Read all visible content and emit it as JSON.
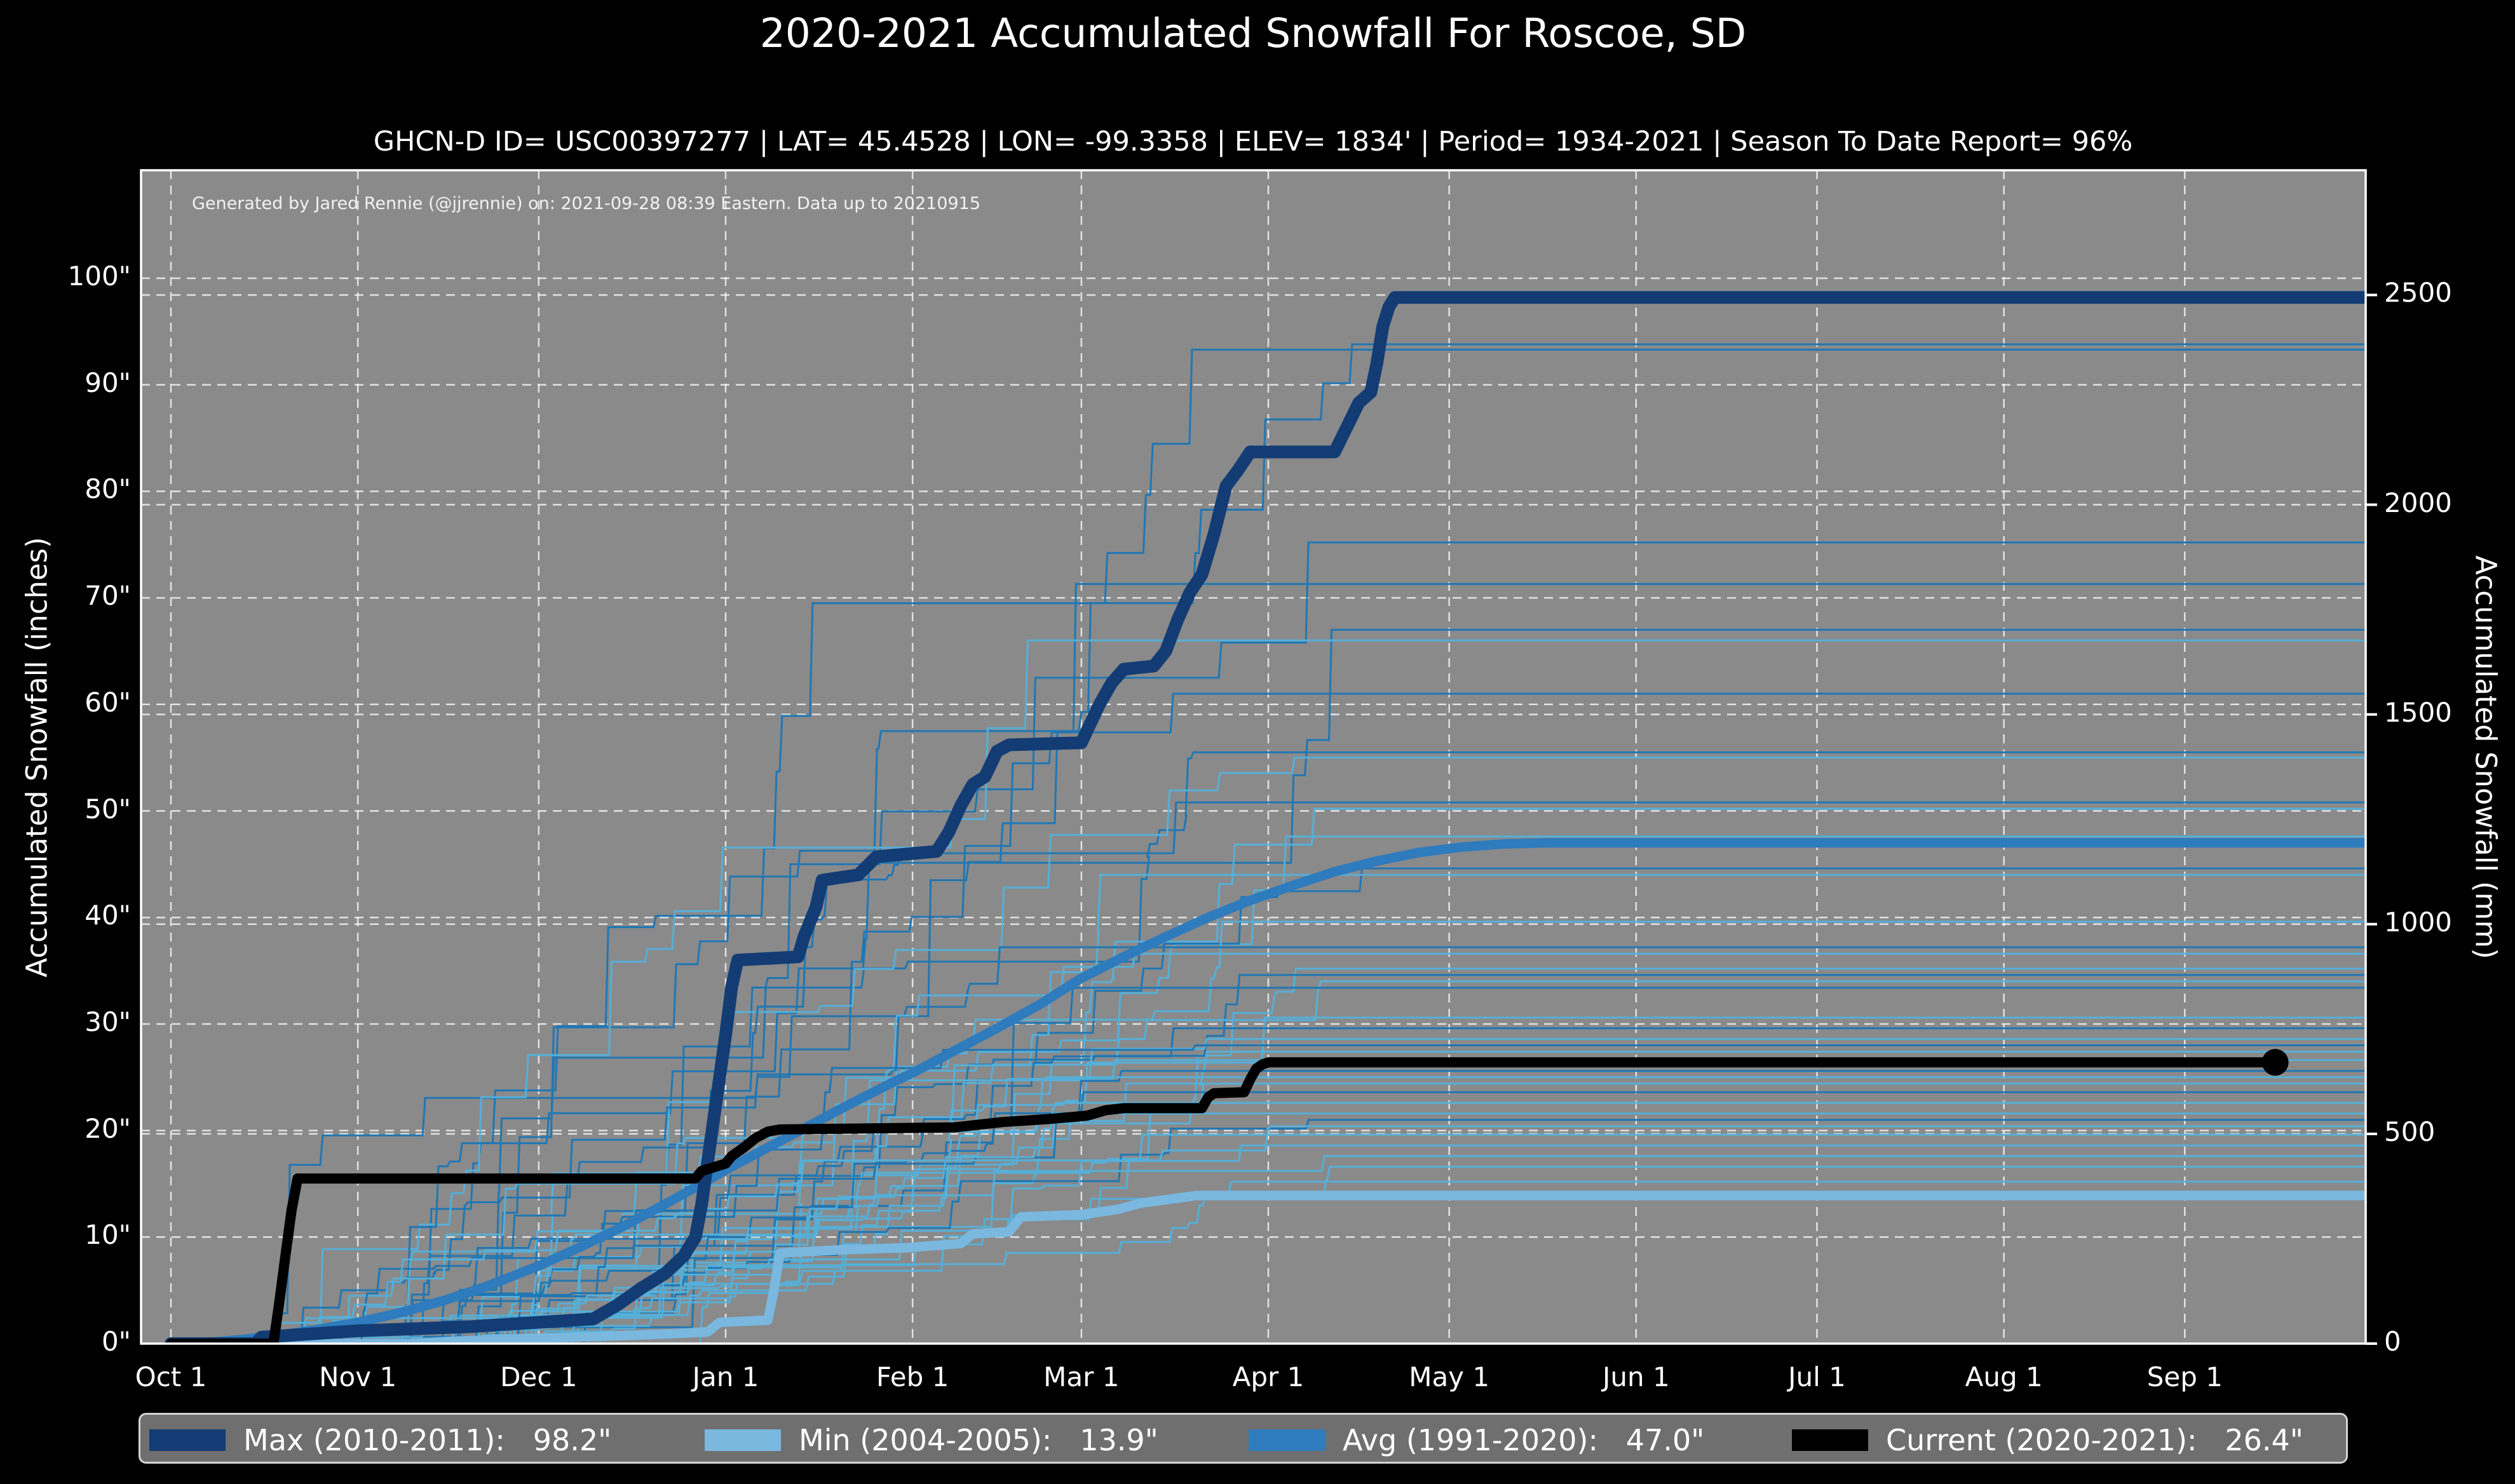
{
  "figure": {
    "title": "2020-2021 Accumulated Snowfall For Roscoe, SD",
    "subtitle": "GHCN-D ID= USC00397277 | LAT= 45.4528 | LON= -99.3358 | ELEV= 1834' | Period= 1934-2021 | Season To Date Report= 96%",
    "annotation": "Generated by Jared Rennie (@jjrennie) on: 2021-09-28 08:39 Eastern. Data up to 20210915",
    "colors": {
      "figure_bg": "#000000",
      "plot_bg": "#8a8a8a",
      "grid": "rgba(255,255,255,0.75)",
      "spine": "#ffffff",
      "max_line": "#133c74",
      "min_line": "#7ab8e0",
      "avg_line": "#2e7bbd",
      "current_line": "#000000",
      "spaghetti_dark": "#1f77b4",
      "spaghetti_light": "#55b0d9",
      "legend_bg": "#6f6f6f",
      "legend_border": "#d4d4d4",
      "text": "#ffffff"
    }
  },
  "chart_data": {
    "type": "line",
    "title": "2020-2021 Accumulated Snowfall For Roscoe, SD",
    "subtitle": "GHCN-D ID= USC00397277 | LAT= 45.4528 | LON= -99.3358 | ELEV= 1834' | Period= 1934-2021 | Season To Date Report= 96%",
    "annotation": "Generated by Jared Rennie (@jjrennie) on: 2021-09-28 08:39 Eastern. Data up to 20210915",
    "grid": "on",
    "legend_position": "bottom",
    "x_axis": {
      "unit": "day offset from Oct 1",
      "range_days": [
        0,
        364
      ],
      "tick_days": [
        0,
        31,
        61,
        92,
        123,
        151,
        182,
        212,
        243,
        273,
        304,
        334
      ],
      "tick_labels": [
        "Oct 1",
        "Nov 1",
        "Dec 1",
        "Jan 1",
        "Feb 1",
        "Mar 1",
        "Apr 1",
        "May 1",
        "Jun 1",
        "Jul 1",
        "Aug 1",
        "Sep 1"
      ]
    },
    "y_left": {
      "label": "Accumulated Snowfall (inches)",
      "range_inches": [
        0,
        110.2
      ],
      "tick_values": [
        0,
        10,
        20,
        30,
        40,
        50,
        60,
        70,
        80,
        90,
        100
      ],
      "tick_labels": [
        "0\"",
        "10\"",
        "20\"",
        "30\"",
        "40\"",
        "50\"",
        "60\"",
        "70\"",
        "80\"",
        "90\"",
        "100\""
      ]
    },
    "y_right": {
      "label": "Accumulated Snowfall (mm)",
      "tick_values_mm": [
        0,
        500,
        1000,
        1500,
        2000,
        2500
      ],
      "tick_labels": [
        "0",
        "500",
        "1000",
        "1500",
        "2000",
        "2500"
      ]
    },
    "series": [
      {
        "id": "max",
        "name": "Max (2010-2011)",
        "final_inches": 98.2,
        "color": "#133c74",
        "stroke_width": 20,
        "points": [
          [
            0,
            0
          ],
          [
            14,
            0
          ],
          [
            15,
            0.6
          ],
          [
            31,
            1.2
          ],
          [
            50,
            1.6
          ],
          [
            61,
            2.0
          ],
          [
            70,
            2.3
          ],
          [
            74,
            3.6
          ],
          [
            78,
            5.2
          ],
          [
            82,
            6.6
          ],
          [
            85,
            8.2
          ],
          [
            87,
            10
          ],
          [
            88,
            13
          ],
          [
            89,
            17
          ],
          [
            90,
            21
          ],
          [
            91,
            25
          ],
          [
            92,
            29
          ],
          [
            93,
            33.5
          ],
          [
            94,
            36
          ],
          [
            104,
            36.3
          ],
          [
            105,
            38.2
          ],
          [
            107,
            41
          ],
          [
            108,
            43.5
          ],
          [
            114,
            44
          ],
          [
            117,
            45.7
          ],
          [
            127,
            46.2
          ],
          [
            129,
            48
          ],
          [
            131,
            50.5
          ],
          [
            133,
            52.5
          ],
          [
            135,
            53.2
          ],
          [
            137,
            55.6
          ],
          [
            139,
            56.2
          ],
          [
            151,
            56.4
          ],
          [
            152,
            57.6
          ],
          [
            154,
            60
          ],
          [
            156,
            62
          ],
          [
            158,
            63.3
          ],
          [
            163,
            63.6
          ],
          [
            165,
            65
          ],
          [
            167,
            68
          ],
          [
            169,
            70.5
          ],
          [
            171,
            72.2
          ],
          [
            173,
            76
          ],
          [
            175,
            80.5
          ],
          [
            177,
            82
          ],
          [
            179,
            83.7
          ],
          [
            193,
            83.7
          ],
          [
            195,
            86
          ],
          [
            197,
            88.3
          ],
          [
            199,
            89.3
          ],
          [
            200,
            92
          ],
          [
            201,
            95.5
          ],
          [
            202,
            97.3
          ],
          [
            203,
            98.2
          ],
          [
            364,
            98.2
          ]
        ]
      },
      {
        "id": "min",
        "name": "Min (2004-2005)",
        "final_inches": 13.9,
        "color": "#7ab8e0",
        "stroke_width": 15,
        "points": [
          [
            0,
            0
          ],
          [
            40,
            0
          ],
          [
            46,
            0.2
          ],
          [
            55,
            0.4
          ],
          [
            61,
            0.5
          ],
          [
            72,
            0.7
          ],
          [
            82,
            0.9
          ],
          [
            89,
            1.1
          ],
          [
            91,
            2.0
          ],
          [
            99,
            2.2
          ],
          [
            100,
            5.0
          ],
          [
            101,
            8.5
          ],
          [
            111,
            8.8
          ],
          [
            122,
            9.0
          ],
          [
            131,
            9.4
          ],
          [
            133,
            10.3
          ],
          [
            139,
            10.5
          ],
          [
            141,
            11.9
          ],
          [
            151,
            12.1
          ],
          [
            157,
            12.6
          ],
          [
            161,
            13.2
          ],
          [
            165,
            13.5
          ],
          [
            170,
            13.9
          ],
          [
            364,
            13.9
          ]
        ]
      },
      {
        "id": "avg",
        "name": "Avg (1991-2020)",
        "final_inches": 47.0,
        "color": "#2e7bbd",
        "stroke_width": 15,
        "smooth": true,
        "points": [
          [
            0,
            0
          ],
          [
            6,
            0.1
          ],
          [
            12,
            0.4
          ],
          [
            18,
            0.8
          ],
          [
            24,
            1.3
          ],
          [
            31,
            2.0
          ],
          [
            38,
            2.9
          ],
          [
            45,
            4.0
          ],
          [
            52,
            5.3
          ],
          [
            61,
            7.3
          ],
          [
            68,
            9.1
          ],
          [
            75,
            11.0
          ],
          [
            82,
            13.1
          ],
          [
            89,
            15.3
          ],
          [
            92,
            16.3
          ],
          [
            99,
            18.4
          ],
          [
            106,
            20.5
          ],
          [
            113,
            22.6
          ],
          [
            120,
            24.6
          ],
          [
            123,
            25.4
          ],
          [
            130,
            27.5
          ],
          [
            137,
            29.6
          ],
          [
            144,
            31.8
          ],
          [
            151,
            34.3
          ],
          [
            158,
            36.3
          ],
          [
            165,
            38.2
          ],
          [
            172,
            40.0
          ],
          [
            179,
            41.6
          ],
          [
            186,
            43.0
          ],
          [
            193,
            44.3
          ],
          [
            200,
            45.3
          ],
          [
            207,
            46.1
          ],
          [
            214,
            46.6
          ],
          [
            221,
            46.9
          ],
          [
            228,
            47.0
          ],
          [
            364,
            47.0
          ]
        ]
      },
      {
        "id": "current",
        "name": "Current (2020-2021)",
        "final_inches": 26.4,
        "color": "#000000",
        "stroke_width": 16,
        "end_marker": true,
        "end_marker_radius": 21,
        "points": [
          [
            0,
            0
          ],
          [
            17,
            0
          ],
          [
            18,
            4
          ],
          [
            19,
            8.3
          ],
          [
            20,
            12.5
          ],
          [
            21,
            15.5
          ],
          [
            87,
            15.5
          ],
          [
            88,
            16.2
          ],
          [
            92,
            16.9
          ],
          [
            93,
            17.6
          ],
          [
            95,
            18.4
          ],
          [
            97,
            19.3
          ],
          [
            99,
            19.9
          ],
          [
            101,
            20.1
          ],
          [
            130,
            20.3
          ],
          [
            138,
            20.8
          ],
          [
            146,
            21.1
          ],
          [
            152,
            21.4
          ],
          [
            155,
            21.9
          ],
          [
            158,
            22.1
          ],
          [
            171,
            22.1
          ],
          [
            172,
            23.1
          ],
          [
            173,
            23.5
          ],
          [
            178,
            23.6
          ],
          [
            179,
            24.8
          ],
          [
            180,
            25.8
          ],
          [
            181,
            26.2
          ],
          [
            182,
            26.4
          ],
          [
            349,
            26.4
          ]
        ]
      }
    ],
    "background_seasons": {
      "description": "thin historical season lines 1934-2021, plateau value in inches at right edge",
      "stroke_width": 3,
      "finals": [
        {
          "final": 93.8,
          "shade": "dark"
        },
        {
          "final": 93.3,
          "shade": "dark"
        },
        {
          "final": 75.2,
          "shade": "dark"
        },
        {
          "final": 71.3,
          "shade": "dark"
        },
        {
          "final": 67.0,
          "shade": "dark"
        },
        {
          "final": 66.0,
          "shade": "light"
        },
        {
          "final": 61.0,
          "shade": "dark"
        },
        {
          "final": 55.5,
          "shade": "dark"
        },
        {
          "final": 55.0,
          "shade": "light"
        },
        {
          "final": 50.8,
          "shade": "dark"
        },
        {
          "final": 50.2,
          "shade": "light"
        },
        {
          "final": 47.6,
          "shade": "light"
        },
        {
          "final": 44.6,
          "shade": "dark"
        },
        {
          "final": 44.0,
          "shade": "light"
        },
        {
          "final": 39.6,
          "shade": "light"
        },
        {
          "final": 37.2,
          "shade": "dark"
        },
        {
          "final": 36.6,
          "shade": "light"
        },
        {
          "final": 35.2,
          "shade": "light"
        },
        {
          "final": 34.6,
          "shade": "dark"
        },
        {
          "final": 34.0,
          "shade": "light"
        },
        {
          "final": 33.4,
          "shade": "dark"
        },
        {
          "final": 30.6,
          "shade": "light"
        },
        {
          "final": 29.6,
          "shade": "dark"
        },
        {
          "final": 28.6,
          "shade": "light"
        },
        {
          "final": 28.0,
          "shade": "dark"
        },
        {
          "final": 27.4,
          "shade": "light"
        },
        {
          "final": 26.6,
          "shade": "light"
        },
        {
          "final": 25.6,
          "shade": "dark"
        },
        {
          "final": 25.0,
          "shade": "light"
        },
        {
          "final": 24.4,
          "shade": "light"
        },
        {
          "final": 23.6,
          "shade": "dark"
        },
        {
          "final": 22.6,
          "shade": "light"
        },
        {
          "final": 21.6,
          "shade": "light"
        },
        {
          "final": 21.0,
          "shade": "dark"
        },
        {
          "final": 20.4,
          "shade": "light"
        },
        {
          "final": 19.6,
          "shade": "light"
        },
        {
          "final": 18.6,
          "shade": "light"
        },
        {
          "final": 17.6,
          "shade": "light"
        },
        {
          "final": 16.6,
          "shade": "light"
        },
        {
          "final": 15.2,
          "shade": "light"
        }
      ]
    },
    "legend": {
      "items": [
        {
          "label": "Max (2010-2011):   98.2\"",
          "color": "#133c74"
        },
        {
          "label": "Min (2004-2005):   13.9\"",
          "color": "#7ab8e0"
        },
        {
          "label": "Avg (1991-2020):   47.0\"",
          "color": "#2e7bbd"
        },
        {
          "label": "Current (2020-2021):   26.4\"",
          "color": "#000000"
        }
      ]
    }
  }
}
